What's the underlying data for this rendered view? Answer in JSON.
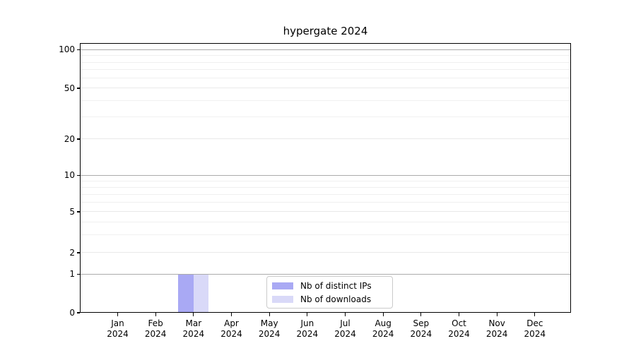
{
  "chart_data": {
    "type": "bar",
    "title": "hypergate 2024",
    "categories": [
      "Jan",
      "Feb",
      "Mar",
      "Apr",
      "May",
      "Jun",
      "Jul",
      "Aug",
      "Sep",
      "Oct",
      "Nov",
      "Dec"
    ],
    "category_sub_label": "2024",
    "series": [
      {
        "name": "Nb of distinct IPs",
        "color": "#a9a9f4",
        "values": [
          0,
          0,
          1,
          0,
          0,
          0,
          0,
          0,
          0,
          0,
          0,
          0
        ]
      },
      {
        "name": "Nb of downloads",
        "color": "#d9d9f8",
        "values": [
          0,
          0,
          1,
          0,
          0,
          0,
          0,
          0,
          0,
          0,
          0,
          0
        ]
      }
    ],
    "yticks": [
      0,
      1,
      2,
      5,
      10,
      20,
      50,
      100
    ],
    "y_minor_ticks": [
      3,
      4,
      6,
      7,
      8,
      9,
      30,
      40,
      60,
      70,
      80,
      90
    ],
    "ylim": [
      0,
      100
    ],
    "yscale": "symlog",
    "grid": "horizontal major+minor",
    "legend_position": "inside lower-center"
  }
}
